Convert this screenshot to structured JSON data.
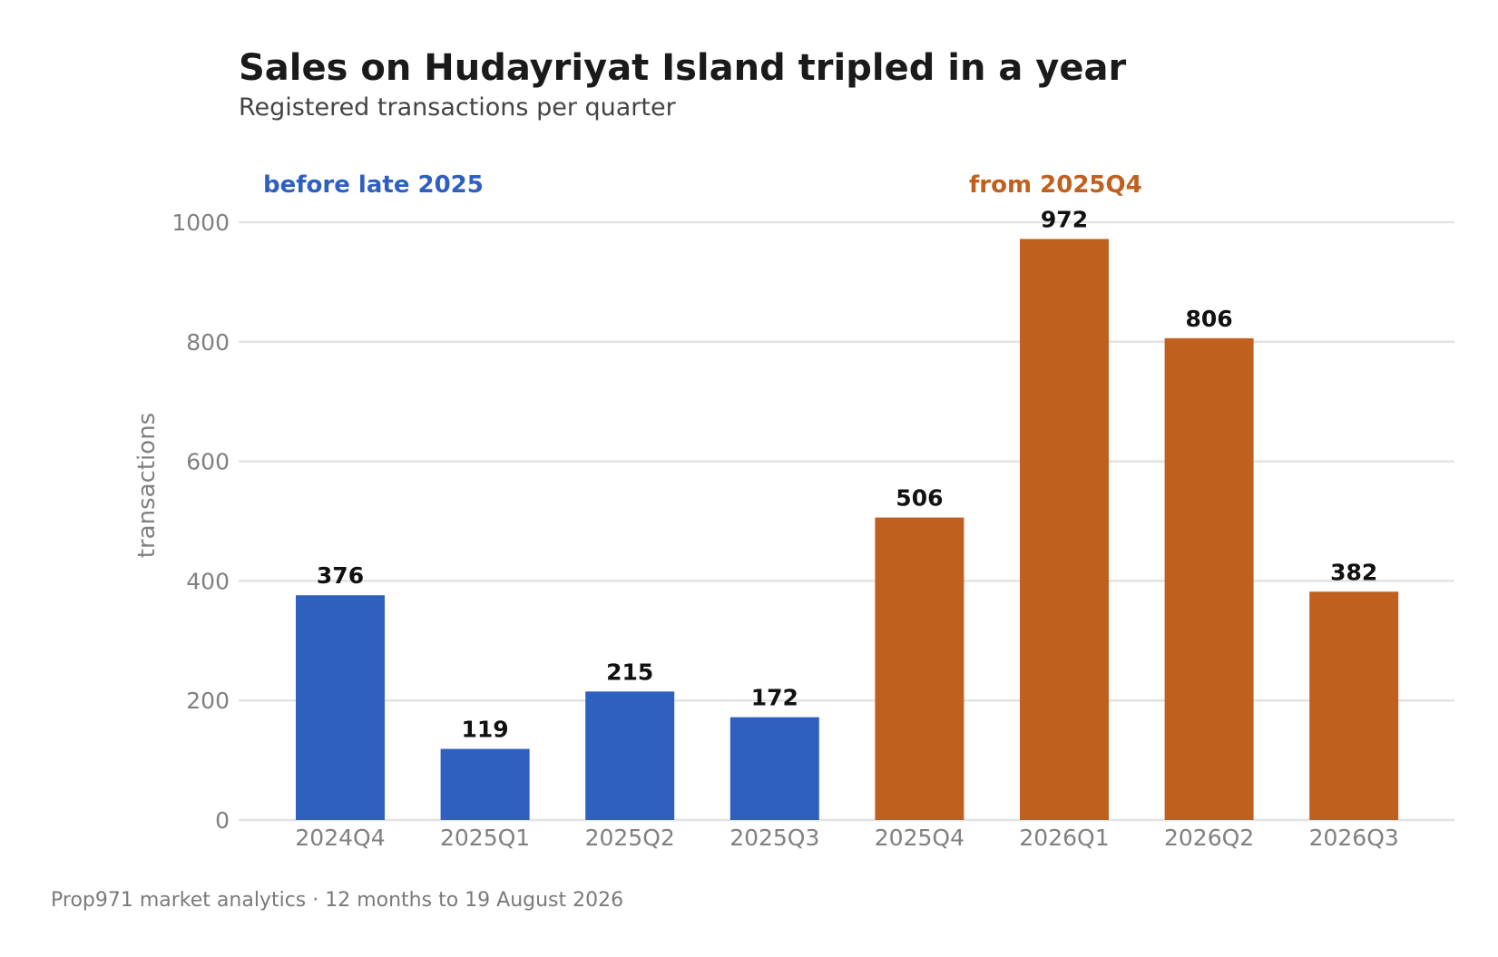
{
  "chart_data": {
    "type": "bar",
    "title": "Sales on Hudayriyat Island tripled in a year",
    "subtitle": "Registered transactions per quarter",
    "xlabel": "",
    "ylabel": "transactions",
    "categories": [
      "2024Q4",
      "2025Q1",
      "2025Q2",
      "2025Q3",
      "2025Q4",
      "2026Q1",
      "2026Q2",
      "2026Q3"
    ],
    "values": [
      376,
      119,
      215,
      172,
      506,
      972,
      806,
      382
    ],
    "bar_group": [
      "before",
      "before",
      "before",
      "before",
      "after",
      "after",
      "after",
      "after"
    ],
    "ylim": [
      0,
      1000
    ],
    "yticks": [
      0,
      200,
      400,
      600,
      800,
      1000
    ],
    "grid": true,
    "annotations": [
      {
        "text": "before late 2025",
        "group": "before"
      },
      {
        "text": "from 2025Q4",
        "group": "after"
      }
    ],
    "colors": {
      "before": "#2f5fbf",
      "after": "#c0601f",
      "grid": "#e3e3e3"
    }
  },
  "footer": "Prop971 market analytics  ·  12 months to 19 August 2026"
}
